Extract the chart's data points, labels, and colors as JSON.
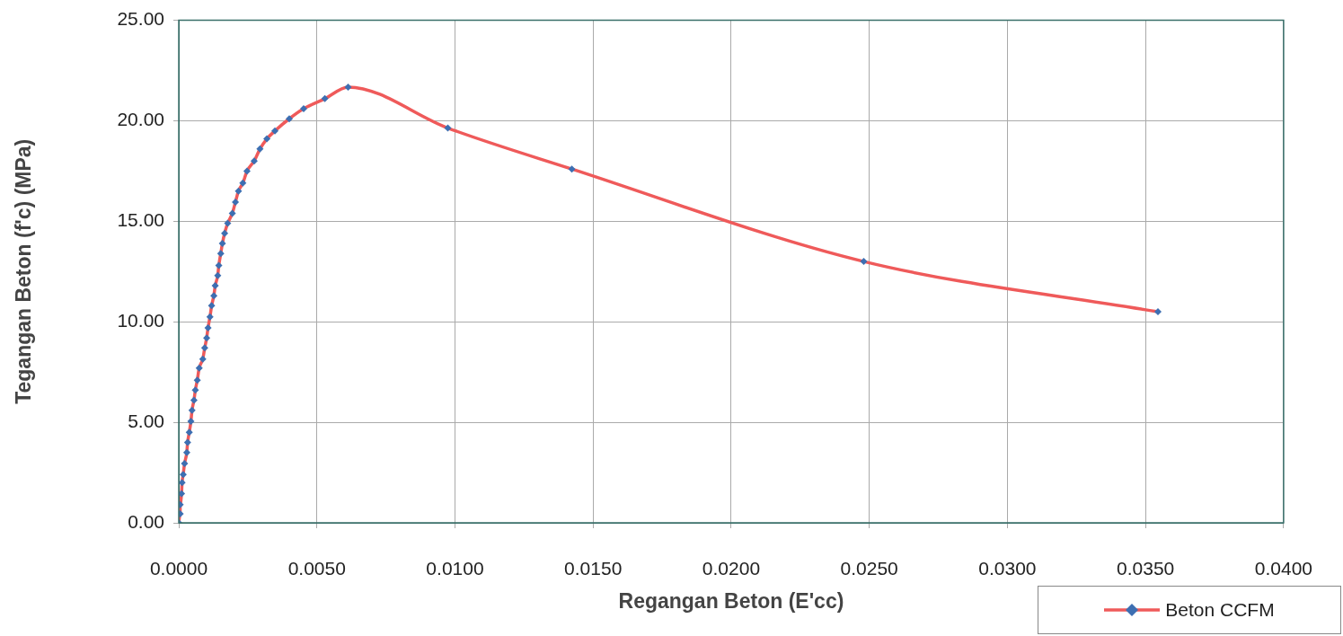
{
  "chart_data": {
    "type": "line",
    "xlabel": "Regangan Beton (E'cc)",
    "ylabel": "Tegangan Beton (f'c) (MPa)",
    "xlim": [
      0,
      0.04
    ],
    "xticks": [
      {
        "value": 0,
        "label": "0.0000"
      },
      {
        "value": 0.005,
        "label": "0.0050"
      },
      {
        "value": 0.01,
        "label": "0.0100"
      },
      {
        "value": 0.015,
        "label": "0.0150"
      },
      {
        "value": 0.02,
        "label": "0.0200"
      },
      {
        "value": 0.025,
        "label": "0.0250"
      },
      {
        "value": 0.03,
        "label": "0.0300"
      },
      {
        "value": 0.035,
        "label": "0.0350"
      },
      {
        "value": 0.04,
        "label": "0.0400"
      }
    ],
    "ylim": [
      0,
      25
    ],
    "yticks": [
      {
        "value": 0,
        "label": "0.00"
      },
      {
        "value": 5,
        "label": "5.00"
      },
      {
        "value": 10,
        "label": "10.00"
      },
      {
        "value": 15,
        "label": "15.00"
      },
      {
        "value": 20,
        "label": "20.00"
      },
      {
        "value": 25,
        "label": "25.00"
      }
    ],
    "grid": true,
    "legend": "bottom right",
    "marker": "diamond",
    "line_style": "solid",
    "series": [
      {
        "name": "Beton CCFM",
        "color": "#ef5a5a",
        "colors": [
          "#3d6fb2",
          "#3d6fb2",
          "#3d6fb2",
          "#3d6fb2",
          "#3d6fb2",
          "#3d6fb2",
          "#3d6fb2",
          "#3d6fb2",
          "#3d6fb2",
          "#3d6fb2",
          "#3d6fb2",
          "#3d6fb2",
          "#3d6fb2",
          "#3d6fb2",
          "#3d6fb2",
          "#3d6fb2",
          "#3d6fb2",
          "#3d6fb2",
          "#3d6fb2",
          "#3d6fb2",
          "#3d6fb2",
          "#3d6fb2",
          "#3d6fb2",
          "#3d6fb2",
          "#3d6fb2",
          "#3d6fb2",
          "#3d6fb2",
          "#3d6fb2",
          "#3d6fb2",
          "#3d6fb2",
          "#3d6fb2",
          "#3d6fb2",
          "#3d6fb2",
          "#3d6fb2",
          "#3d6fb2",
          "#3d6fb2",
          "#3d6fb2",
          "#3d6fb2",
          "#3d6fb2",
          "#3d6fb2",
          "#3d6fb2",
          "#3d6fb2",
          "#3d6fb2",
          "#3d6fb2",
          "#3d6fb2",
          "#3d6fb2",
          "#3d6fb2"
        ],
        "x": [
          0,
          5e-05,
          5e-05,
          0.0001,
          0.00012,
          0.00016,
          0.00021,
          0.00029,
          0.00032,
          0.00038,
          0.00044,
          0.00048,
          0.00055,
          0.0006,
          0.00067,
          0.00074,
          0.00087,
          0.00094,
          0.00101,
          0.00106,
          0.00113,
          0.00119,
          0.00127,
          0.00132,
          0.00141,
          0.00145,
          0.00152,
          0.00158,
          0.00166,
          0.00177,
          0.00194,
          0.00205,
          0.00216,
          0.00232,
          0.00247,
          0.00273,
          0.00294,
          0.00319,
          0.00348,
          0.004,
          0.00452,
          0.00529,
          0.00613,
          0.00974,
          0.01423,
          0.0248,
          0.03545
        ],
        "values": [
          0,
          0.45,
          0.9,
          1.45,
          2.0,
          2.4,
          2.95,
          3.5,
          4.0,
          4.5,
          5.05,
          5.6,
          6.1,
          6.6,
          7.1,
          7.7,
          8.15,
          8.7,
          9.2,
          9.7,
          10.25,
          10.8,
          11.3,
          11.8,
          12.3,
          12.8,
          13.4,
          13.9,
          14.4,
          14.9,
          15.4,
          15.95,
          16.5,
          16.9,
          17.5,
          18.0,
          18.6,
          19.1,
          19.5,
          20.1,
          20.6,
          21.1,
          21.68,
          19.64,
          17.6,
          13.0,
          10.5
        ]
      }
    ]
  }
}
